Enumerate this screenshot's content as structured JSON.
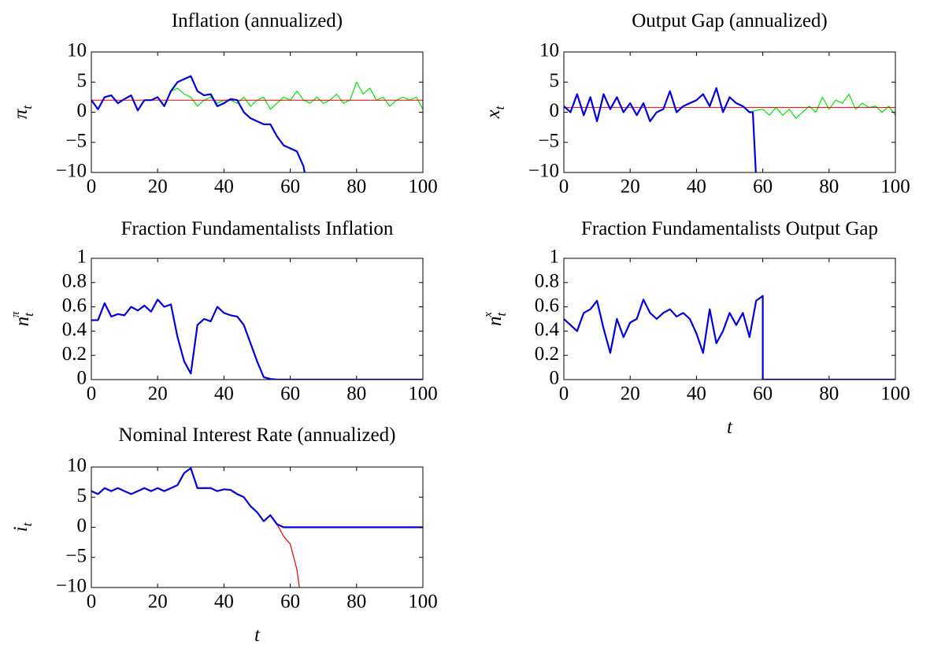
{
  "chart_data": [
    {
      "type": "line",
      "title": "Inflation (annualized)",
      "ylabel_base": "π",
      "ylabel_sub": "t",
      "xlim": [
        0,
        100
      ],
      "xticks": [
        0,
        20,
        40,
        60,
        80,
        100
      ],
      "ylim": [
        -10,
        10
      ],
      "yticks": [
        {
          "value": -10,
          "label": "−10"
        },
        {
          "value": -5,
          "label": "−5"
        },
        0,
        5,
        10
      ],
      "series": [
        {
          "color": "#00e600",
          "width": 1.2,
          "x": [
            0,
            2,
            4,
            6,
            8,
            10,
            12,
            14,
            16,
            18,
            20,
            22,
            24,
            26,
            28,
            30,
            32,
            34,
            36,
            38,
            40,
            42,
            44,
            46,
            48,
            50,
            52,
            54,
            56,
            58,
            60,
            62,
            64,
            66,
            68,
            70,
            72,
            74,
            76,
            78,
            80,
            82,
            84,
            86,
            88,
            90,
            92,
            94,
            96,
            98,
            100
          ],
          "values": [
            2,
            0.5,
            2.5,
            2.8,
            1.5,
            2.2,
            2.8,
            0.3,
            2,
            2,
            2.5,
            1,
            3.5,
            4,
            3,
            2.5,
            1,
            2,
            2.5,
            1.5,
            2,
            2,
            1.5,
            2.5,
            1,
            2,
            2.5,
            0.5,
            1.5,
            2.5,
            2,
            3.5,
            2,
            1.5,
            2.5,
            1.5,
            2,
            3,
            1.5,
            2,
            5,
            3,
            4,
            2,
            2.5,
            1,
            2,
            2.5,
            2,
            2.5,
            0.5
          ]
        },
        {
          "color": "#e60000",
          "width": 1,
          "x": [
            0,
            100
          ],
          "values": [
            2,
            2
          ]
        },
        {
          "color": "#0000e0",
          "width": 2.2,
          "x": [
            0,
            2,
            4,
            6,
            8,
            10,
            12,
            14,
            16,
            18,
            20,
            22,
            24,
            26,
            28,
            30,
            32,
            34,
            36,
            38,
            40,
            42,
            44,
            46,
            48,
            50,
            52,
            54,
            56,
            58,
            60,
            62,
            64,
            65
          ],
          "values": [
            2,
            0.5,
            2.5,
            2.8,
            1.5,
            2.2,
            2.8,
            0.3,
            2,
            2,
            2.5,
            1,
            3.5,
            5,
            5.5,
            6,
            3.5,
            2.8,
            3,
            1,
            1.5,
            2.2,
            2,
            0,
            -1,
            -1.5,
            -2,
            -2,
            -4,
            -5.5,
            -6,
            -6.5,
            -9,
            -12
          ]
        }
      ]
    },
    {
      "type": "line",
      "title": "Output Gap (annualized)",
      "ylabel_base": "x",
      "ylabel_sub": "t",
      "xlim": [
        0,
        100
      ],
      "xticks": [
        0,
        20,
        40,
        60,
        80,
        100
      ],
      "ylim": [
        -10,
        10
      ],
      "yticks": [
        {
          "value": -10,
          "label": "−10"
        },
        {
          "value": -5,
          "label": "−5"
        },
        0,
        5,
        10
      ],
      "series": [
        {
          "color": "#00e600",
          "width": 1.2,
          "x": [
            0,
            2,
            4,
            6,
            8,
            10,
            12,
            14,
            16,
            18,
            20,
            22,
            24,
            26,
            28,
            30,
            32,
            34,
            36,
            38,
            40,
            42,
            44,
            46,
            48,
            50,
            52,
            54,
            56,
            58,
            60,
            62,
            64,
            66,
            68,
            70,
            72,
            74,
            76,
            78,
            80,
            82,
            84,
            86,
            88,
            90,
            92,
            94,
            96,
            98,
            100
          ],
          "values": [
            1,
            0,
            3,
            -0.5,
            2.5,
            -1.5,
            3,
            0.5,
            2.5,
            0,
            1.5,
            -0.5,
            1.5,
            -1.5,
            0,
            0.5,
            3.5,
            0,
            1,
            1.5,
            2,
            3,
            1,
            4,
            0,
            2.5,
            1.5,
            1,
            0,
            0.3,
            0.5,
            -0.5,
            0.8,
            -0.5,
            0.5,
            -1,
            0,
            1,
            0,
            2.5,
            0.5,
            2,
            1.5,
            3,
            0.5,
            1.5,
            0.8,
            1,
            0,
            1,
            -0.5
          ]
        },
        {
          "color": "#e60000",
          "width": 1,
          "x": [
            0,
            100
          ],
          "values": [
            0.8,
            0.8
          ]
        },
        {
          "color": "#0000e0",
          "width": 2.2,
          "x": [
            0,
            2,
            4,
            6,
            8,
            10,
            12,
            14,
            16,
            18,
            20,
            22,
            24,
            26,
            28,
            30,
            32,
            34,
            36,
            38,
            40,
            42,
            44,
            46,
            48,
            50,
            52,
            54,
            56,
            57,
            58
          ],
          "values": [
            1,
            0,
            3,
            -0.5,
            2.5,
            -1.5,
            3,
            0.5,
            2.5,
            0,
            1.5,
            -0.5,
            1.5,
            -1.5,
            0,
            0.5,
            3.5,
            0,
            1,
            1.5,
            2,
            3,
            1,
            4,
            0,
            2.5,
            1.5,
            1,
            0,
            0,
            -11
          ]
        }
      ]
    },
    {
      "type": "line",
      "title": "Fraction Fundamentalists Inflation",
      "ylabel_base": "n",
      "ylabel_sub": "t",
      "ylabel_sup": "π",
      "xlim": [
        0,
        100
      ],
      "xticks": [
        0,
        20,
        40,
        60,
        80,
        100
      ],
      "ylim": [
        0,
        1
      ],
      "yticks": [
        0,
        0.2,
        0.4,
        0.6,
        0.8,
        1
      ],
      "series": [
        {
          "color": "#0000e0",
          "width": 2.2,
          "x": [
            0,
            2,
            4,
            6,
            8,
            10,
            12,
            14,
            16,
            18,
            20,
            22,
            24,
            26,
            28,
            30,
            32,
            34,
            36,
            38,
            40,
            42,
            44,
            46,
            48,
            50,
            52,
            54,
            56,
            100
          ],
          "values": [
            0.49,
            0.49,
            0.63,
            0.52,
            0.54,
            0.53,
            0.6,
            0.57,
            0.61,
            0.56,
            0.66,
            0.6,
            0.62,
            0.35,
            0.15,
            0.05,
            0.45,
            0.5,
            0.48,
            0.6,
            0.55,
            0.53,
            0.52,
            0.45,
            0.3,
            0.15,
            0.02,
            0.005,
            0,
            0
          ]
        }
      ]
    },
    {
      "type": "line",
      "title": "Fraction Fundamentalists Output Gap",
      "ylabel_base": "n",
      "ylabel_sub": "t",
      "ylabel_sup": "x",
      "xlabel": "t",
      "xlim": [
        0,
        100
      ],
      "xticks": [
        0,
        20,
        40,
        60,
        80,
        100
      ],
      "ylim": [
        0,
        1
      ],
      "yticks": [
        0,
        0.2,
        0.4,
        0.6,
        0.8,
        1
      ],
      "series": [
        {
          "color": "#0000e0",
          "width": 2.2,
          "x": [
            0,
            2,
            4,
            6,
            8,
            10,
            12,
            14,
            16,
            18,
            20,
            22,
            24,
            26,
            28,
            30,
            32,
            34,
            36,
            38,
            40,
            42,
            44,
            46,
            48,
            50,
            52,
            54,
            56,
            58,
            60,
            60,
            100
          ],
          "values": [
            0.5,
            0.45,
            0.4,
            0.55,
            0.58,
            0.65,
            0.42,
            0.22,
            0.5,
            0.35,
            0.47,
            0.5,
            0.66,
            0.55,
            0.5,
            0.55,
            0.58,
            0.52,
            0.55,
            0.5,
            0.38,
            0.22,
            0.58,
            0.3,
            0.4,
            0.55,
            0.45,
            0.55,
            0.35,
            0.65,
            0.69,
            0,
            0
          ]
        }
      ]
    },
    {
      "type": "line",
      "title": "Nominal Interest Rate (annualized)",
      "ylabel_base": "i",
      "ylabel_sub": "t",
      "xlabel": "t",
      "xlim": [
        0,
        100
      ],
      "xticks": [
        0,
        20,
        40,
        60,
        80,
        100
      ],
      "ylim": [
        -10,
        10
      ],
      "yticks": [
        {
          "value": -10,
          "label": "−10"
        },
        {
          "value": -5,
          "label": "−5"
        },
        0,
        5,
        10
      ],
      "series": [
        {
          "color": "#e60000",
          "width": 1.2,
          "x": [
            50,
            52,
            54,
            56,
            58,
            60,
            62,
            63
          ],
          "values": [
            2.5,
            1,
            2,
            0.5,
            -1.5,
            -2.8,
            -7,
            -11
          ]
        },
        {
          "color": "#0000e0",
          "width": 2.2,
          "x": [
            0,
            2,
            4,
            6,
            8,
            10,
            12,
            14,
            16,
            18,
            20,
            22,
            24,
            26,
            28,
            30,
            32,
            34,
            36,
            38,
            40,
            42,
            44,
            46,
            48,
            50,
            52,
            54,
            56,
            58,
            100
          ],
          "values": [
            6,
            5.5,
            6.5,
            6,
            6.5,
            6,
            5.5,
            6,
            6.5,
            6,
            6.5,
            6,
            6.5,
            7,
            9,
            9.8,
            6.5,
            6.5,
            6.5,
            6,
            6.3,
            6.2,
            5.5,
            5,
            3.5,
            2.5,
            1,
            2,
            0.5,
            0,
            0
          ]
        }
      ]
    }
  ]
}
